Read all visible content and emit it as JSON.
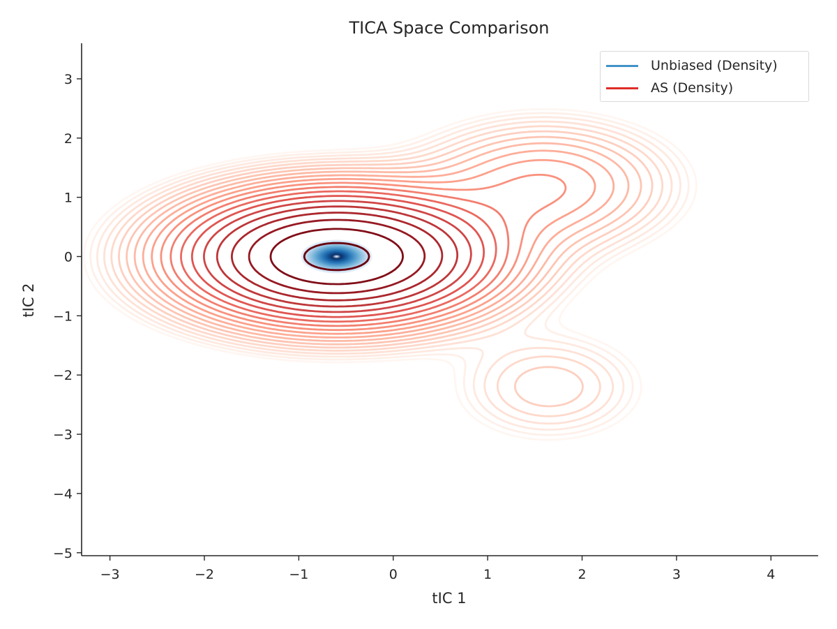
{
  "chart_data": {
    "type": "contour",
    "title": "TICA Space Comparison",
    "xlabel": "tIC 1",
    "ylabel": "tIC 2",
    "xlim": [
      -3.3,
      4.5
    ],
    "ylim": [
      -5.05,
      3.6
    ],
    "x_ticks": [
      -3,
      -2,
      -1,
      0,
      1,
      2,
      3,
      4
    ],
    "y_ticks": [
      -5,
      -4,
      -3,
      -2,
      -1,
      0,
      1,
      2,
      3
    ],
    "x_tick_labels": [
      "−3",
      "−2",
      "−1",
      "0",
      "1",
      "2",
      "3",
      "4"
    ],
    "y_tick_labels": [
      "−5",
      "−4",
      "−3",
      "−2",
      "−1",
      "0",
      "1",
      "2",
      "3"
    ],
    "grid": false,
    "legend_position": "top-right",
    "series": [
      {
        "name": "Unbiased (Density)",
        "color": "#4292c6",
        "kind": "filled-density",
        "center": [
          -0.6,
          0.0
        ],
        "sigma": [
          0.2,
          0.15
        ]
      },
      {
        "name": "AS (Density)",
        "color": "#de2d26",
        "kind": "contour-lines",
        "levels": 20,
        "components": [
          {
            "mean": [
              -0.6,
              0.0
            ],
            "sd": [
              0.9,
              0.6
            ],
            "weight": 1.0
          },
          {
            "mean": [
              1.6,
              1.2
            ],
            "sd": [
              0.75,
              0.6
            ],
            "weight": 0.12
          },
          {
            "mean": [
              1.65,
              -2.2
            ],
            "sd": [
              0.6,
              0.55
            ],
            "weight": 0.045
          }
        ]
      }
    ]
  },
  "legend": {
    "items": [
      {
        "label": "Unbiased (Density)",
        "color": "#4292c6"
      },
      {
        "label": "AS (Density)",
        "color": "#de2d26"
      }
    ]
  }
}
